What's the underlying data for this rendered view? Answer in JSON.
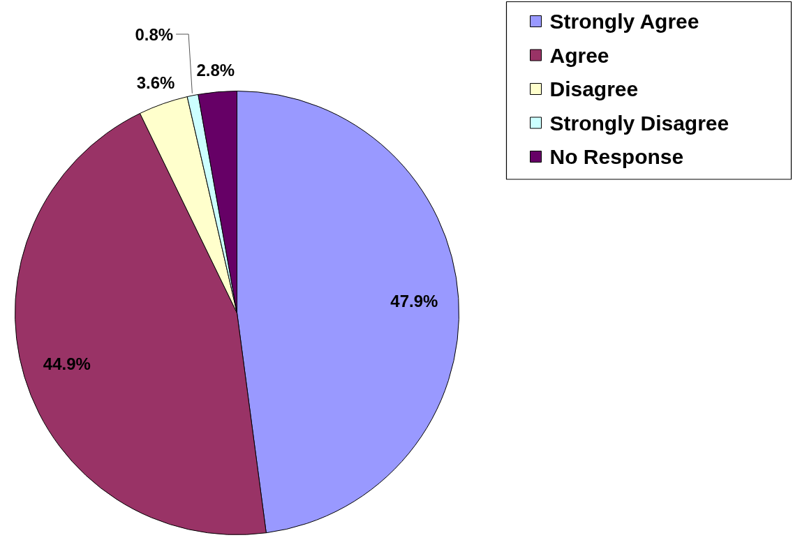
{
  "chart_data": {
    "type": "pie",
    "categories": [
      "Strongly Agree",
      "Agree",
      "Disagree",
      "Strongly Disagree",
      "No Response"
    ],
    "values": [
      47.9,
      44.9,
      3.6,
      0.8,
      2.8
    ],
    "colors": [
      "#9999ff",
      "#993366",
      "#ffffcc",
      "#ccffff",
      "#660066"
    ],
    "value_labels": [
      "47.9%",
      "44.9%",
      "3.6%",
      "0.8%",
      "2.8%"
    ],
    "legend": "top right"
  }
}
